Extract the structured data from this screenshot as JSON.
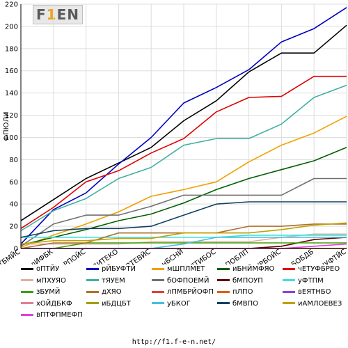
{
  "logo": {
    "text_a": "F",
    "text_hi": "1",
    "text_b": "EN"
  },
  "footer": {
    "url": "http://f1.f-e-n.net/"
  },
  "colors": {
    "axis": "#000000",
    "grid": "#dddddd"
  },
  "chart_data": {
    "type": "line",
    "ylabel": "ФПЮЛИ",
    "ylim": [
      0,
      220
    ],
    "yticks": [
      0,
      20,
      40,
      60,
      80,
      100,
      120,
      140,
      160,
      180,
      200,
      220
    ],
    "grid": true,
    "categories": [
      "ьФТБМЙС",
      "лИФБК",
      "сРПОЙС",
      "вВИТЕКО",
      "зТЕБФ ВТЕВЙС",
      "нБСНЙ",
      "ДЙЕТАМЙС ПТИБОС",
      "нПОБЛП",
      "йУРБОЙС",
      "лБОБДБ",
      "бЧУФТЙС"
    ],
    "legend_position": "bottom",
    "series": [
      {
        "name": "оПТЙУ",
        "color": "#000000",
        "values": [
          25,
          44,
          63,
          77,
          91,
          115,
          133,
          159,
          176,
          176,
          201
        ]
      },
      {
        "name": "рЙБУФТЙ",
        "color": "#0000c0",
        "values": [
          4,
          35,
          50,
          76,
          100,
          131,
          145,
          161,
          186,
          198,
          217
        ]
      },
      {
        "name": "мШПЛМЕТ",
        "color": "#f0a000",
        "values": [
          1,
          12,
          22,
          33,
          47,
          53,
          60,
          78,
          93,
          104,
          119
        ]
      },
      {
        "name": "иБНЙМФЯО",
        "color": "#006000",
        "values": [
          3,
          10,
          17,
          25,
          31,
          41,
          53,
          63,
          71,
          79,
          91
        ]
      },
      {
        "name": "чЕТУФБРЕО",
        "color": "#e00000",
        "values": [
          18,
          37,
          60,
          70,
          86,
          99,
          123,
          136,
          137,
          155,
          155
        ]
      },
      {
        "name": "мПХУЯО",
        "color": "#e0b0a0",
        "values": [
          4,
          4,
          4,
          4,
          6,
          6,
          6,
          6,
          10,
          13,
          13
        ]
      },
      {
        "name": "тЯУЕМ",
        "color": "#40b0a0",
        "values": [
          16,
          34,
          45,
          63,
          73,
          93,
          99,
          99,
          112,
          136,
          147
        ]
      },
      {
        "name": "бОФПОЕМЙ",
        "color": "#707070",
        "values": [
          2,
          22,
          30,
          30,
          38,
          48,
          48,
          48,
          48,
          63,
          63
        ]
      },
      {
        "name": "бМПОУП",
        "color": "#600000",
        "values": [
          0,
          0,
          0,
          0,
          0,
          0,
          0,
          0,
          2,
          8,
          10
        ]
      },
      {
        "name": "уФТПМ",
        "color": "#40e0e0",
        "values": [
          10,
          10,
          10,
          10,
          10,
          10,
          10,
          12,
          12,
          12,
          12
        ]
      },
      {
        "name": "зБУМЙ",
        "color": "#40a000",
        "values": [
          0,
          0,
          5,
          5,
          5,
          5,
          5,
          5,
          5,
          5,
          5
        ]
      },
      {
        "name": "дХЯО",
        "color": "#b07030",
        "values": [
          0,
          5,
          5,
          14,
          14,
          14,
          14,
          20,
          20,
          22,
          22
        ]
      },
      {
        "name": "лПМБРЙОФП",
        "color": "#e04040",
        "values": [
          0,
          0,
          0,
          0,
          0,
          0,
          0,
          0,
          0,
          0,
          0
        ]
      },
      {
        "name": "пЛПО",
        "color": "#e06000",
        "values": [
          0,
          0,
          0,
          0,
          0,
          0,
          0,
          0,
          0,
          0,
          0
        ]
      },
      {
        "name": "вЕЯТНБО",
        "color": "#9040e0",
        "values": [
          0,
          0,
          0,
          0,
          0,
          0,
          0,
          0,
          0,
          0,
          0
        ]
      },
      {
        "name": "хОЙДБКФ",
        "color": "#e08090",
        "values": [
          0,
          0,
          0,
          0,
          0,
          0,
          0,
          0,
          0,
          0,
          0
        ]
      },
      {
        "name": "иБДЦБТ",
        "color": "#a0a000",
        "values": [
          0,
          0,
          0,
          0,
          0,
          0,
          0,
          0,
          0,
          0,
          0
        ]
      },
      {
        "name": "уБКОГ",
        "color": "#40c0e0",
        "values": [
          0,
          0,
          0,
          0,
          0,
          4,
          10,
          10,
          10,
          10,
          10
        ]
      },
      {
        "name": "бМВПО",
        "color": "#104060",
        "values": [
          10,
          16,
          18,
          18,
          20,
          30,
          40,
          42,
          42,
          42,
          42
        ]
      },
      {
        "name": "иАМЛОЕВЕЗ",
        "color": "#c0a000",
        "values": [
          4,
          7,
          7,
          9,
          9,
          14,
          14,
          14,
          17,
          21,
          23
        ]
      },
      {
        "name": "вПТФПМЕФП",
        "color": "#e040e0",
        "values": [
          0,
          0,
          0,
          0,
          0,
          0,
          0,
          0,
          0,
          2,
          4
        ]
      }
    ]
  }
}
